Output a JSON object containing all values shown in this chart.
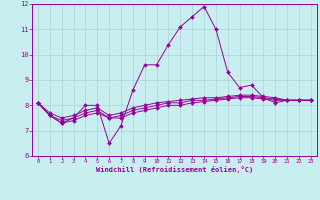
{
  "bg_color": "#c8eef0",
  "line_color": "#990099",
  "grid_color": "#b0d8da",
  "xlabel": "Windchill (Refroidissement éolien,°C)",
  "xlabel_color": "#990099",
  "xlim": [
    -0.5,
    23.5
  ],
  "ylim": [
    6,
    12
  ],
  "yticks": [
    6,
    7,
    8,
    9,
    10,
    11,
    12
  ],
  "xticks": [
    0,
    1,
    2,
    3,
    4,
    5,
    6,
    7,
    8,
    9,
    10,
    11,
    12,
    13,
    14,
    15,
    16,
    17,
    18,
    19,
    20,
    21,
    22,
    23
  ],
  "series1_x": [
    0,
    1,
    2,
    3,
    4,
    5,
    6,
    7,
    8,
    9,
    10,
    11,
    12,
    13,
    14,
    15,
    16,
    17,
    18,
    19,
    20,
    21,
    22,
    23
  ],
  "series1_y": [
    8.1,
    7.6,
    7.3,
    7.5,
    8.0,
    8.0,
    6.5,
    7.2,
    8.6,
    9.6,
    9.6,
    10.4,
    11.1,
    11.5,
    11.9,
    11.0,
    9.3,
    8.7,
    8.8,
    8.3,
    8.1,
    8.2,
    8.2,
    8.2
  ],
  "series2_x": [
    0,
    1,
    2,
    3,
    4,
    5,
    6,
    7,
    8,
    9,
    10,
    11,
    12,
    13,
    14,
    15,
    16,
    17,
    18,
    19,
    20,
    21,
    22,
    23
  ],
  "series2_y": [
    8.1,
    7.6,
    7.4,
    7.5,
    7.7,
    7.8,
    7.5,
    7.6,
    7.8,
    7.9,
    8.0,
    8.1,
    8.1,
    8.2,
    8.2,
    8.25,
    8.3,
    8.35,
    8.35,
    8.3,
    8.25,
    8.2,
    8.2,
    8.2
  ],
  "series3_x": [
    0,
    1,
    2,
    3,
    4,
    5,
    6,
    7,
    8,
    9,
    10,
    11,
    12,
    13,
    14,
    15,
    16,
    17,
    18,
    19,
    20,
    21,
    22,
    23
  ],
  "series3_y": [
    8.1,
    7.6,
    7.3,
    7.4,
    7.6,
    7.7,
    7.5,
    7.5,
    7.7,
    7.8,
    7.9,
    8.0,
    8.0,
    8.1,
    8.15,
    8.2,
    8.25,
    8.3,
    8.3,
    8.25,
    8.2,
    8.2,
    8.2,
    8.2
  ],
  "series4_x": [
    0,
    1,
    2,
    3,
    4,
    5,
    6,
    7,
    8,
    9,
    10,
    11,
    12,
    13,
    14,
    15,
    16,
    17,
    18,
    19,
    20,
    21,
    22,
    23
  ],
  "series4_y": [
    8.1,
    7.7,
    7.5,
    7.6,
    7.8,
    7.9,
    7.6,
    7.7,
    7.9,
    8.0,
    8.1,
    8.15,
    8.2,
    8.25,
    8.3,
    8.3,
    8.35,
    8.4,
    8.4,
    8.35,
    8.3,
    8.2,
    8.2,
    8.2
  ]
}
